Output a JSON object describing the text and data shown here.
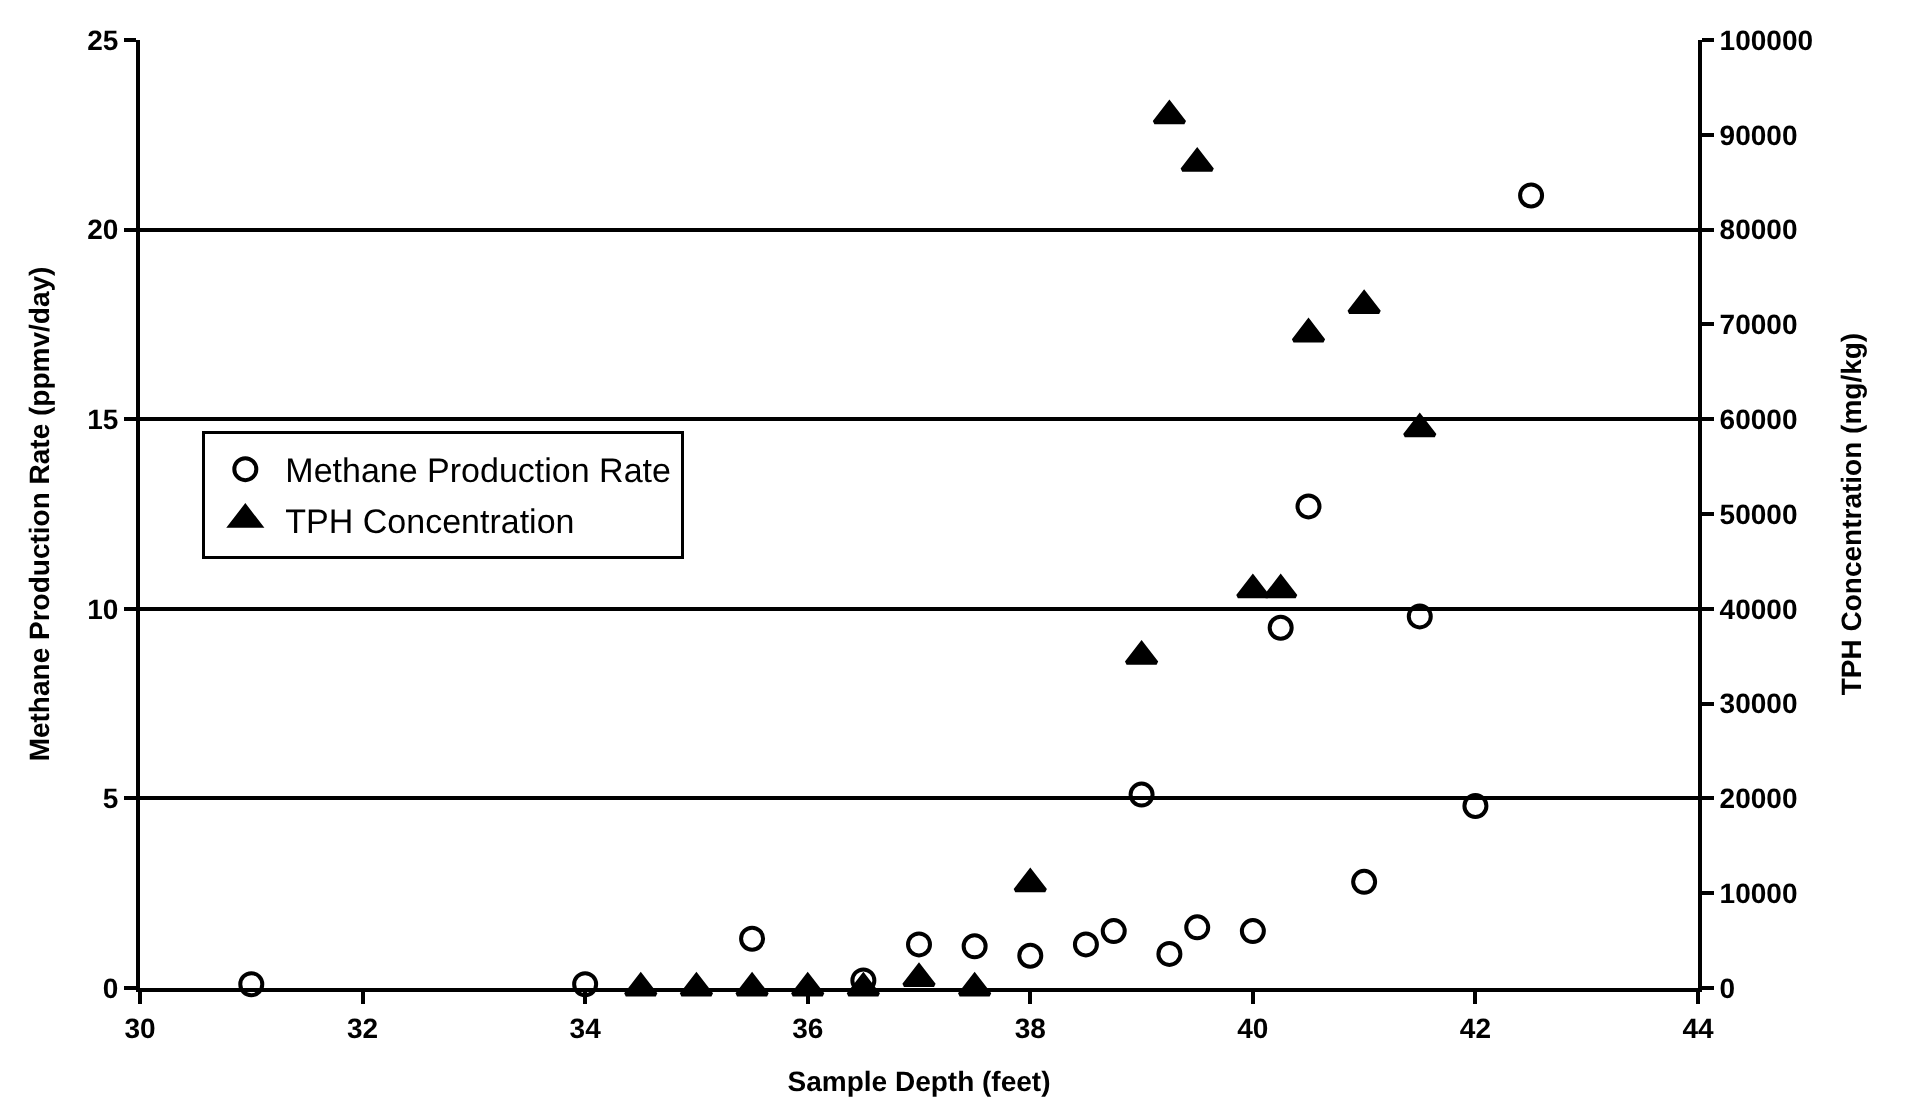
{
  "chart_data": {
    "type": "scatter",
    "xlabel": "Sample Depth (feet)",
    "ylabel": "Methane Production Rate (ppmv/day)",
    "y2label": "TPH Concentration (mg/kg)",
    "xlim": [
      30,
      44
    ],
    "xticks": [
      30,
      32,
      34,
      36,
      38,
      40,
      42,
      44
    ],
    "ylim": [
      0,
      25
    ],
    "yticks": [
      0,
      5,
      10,
      15,
      20,
      25
    ],
    "y2lim": [
      0,
      100000
    ],
    "y2ticks": [
      0,
      10000,
      20000,
      30000,
      40000,
      50000,
      60000,
      70000,
      80000,
      90000,
      100000
    ],
    "grid": "y",
    "legend": "left",
    "series": [
      {
        "name": "Methane Production Rate",
        "color": "#000000",
        "marker": "circle",
        "axis": "y",
        "x": [
          31.0,
          34.0,
          35.5,
          36.5,
          37.0,
          37.5,
          38.0,
          38.5,
          38.75,
          39.0,
          39.25,
          39.5,
          40.0,
          40.25,
          40.5,
          41.0,
          41.5,
          42.0,
          42.5
        ],
        "values": [
          0.1,
          0.1,
          1.3,
          0.2,
          1.15,
          1.1,
          0.85,
          1.15,
          1.5,
          5.1,
          0.9,
          1.6,
          1.5,
          9.5,
          12.7,
          2.8,
          9.8,
          4.8,
          20.9
        ]
      },
      {
        "name": "TPH Concentration",
        "color": "#000000",
        "marker": "triangle",
        "axis": "y2",
        "x": [
          34.5,
          35.0,
          35.5,
          36.0,
          36.5,
          37.0,
          37.5,
          38.0,
          39.0,
          39.25,
          39.5,
          40.0,
          40.25,
          40.5,
          41.0,
          41.5
        ],
        "values": [
          0,
          0,
          0,
          0,
          0,
          1000,
          0,
          11000,
          35000,
          92000,
          87000,
          42000,
          42000,
          69000,
          72000,
          59000
        ]
      }
    ]
  }
}
